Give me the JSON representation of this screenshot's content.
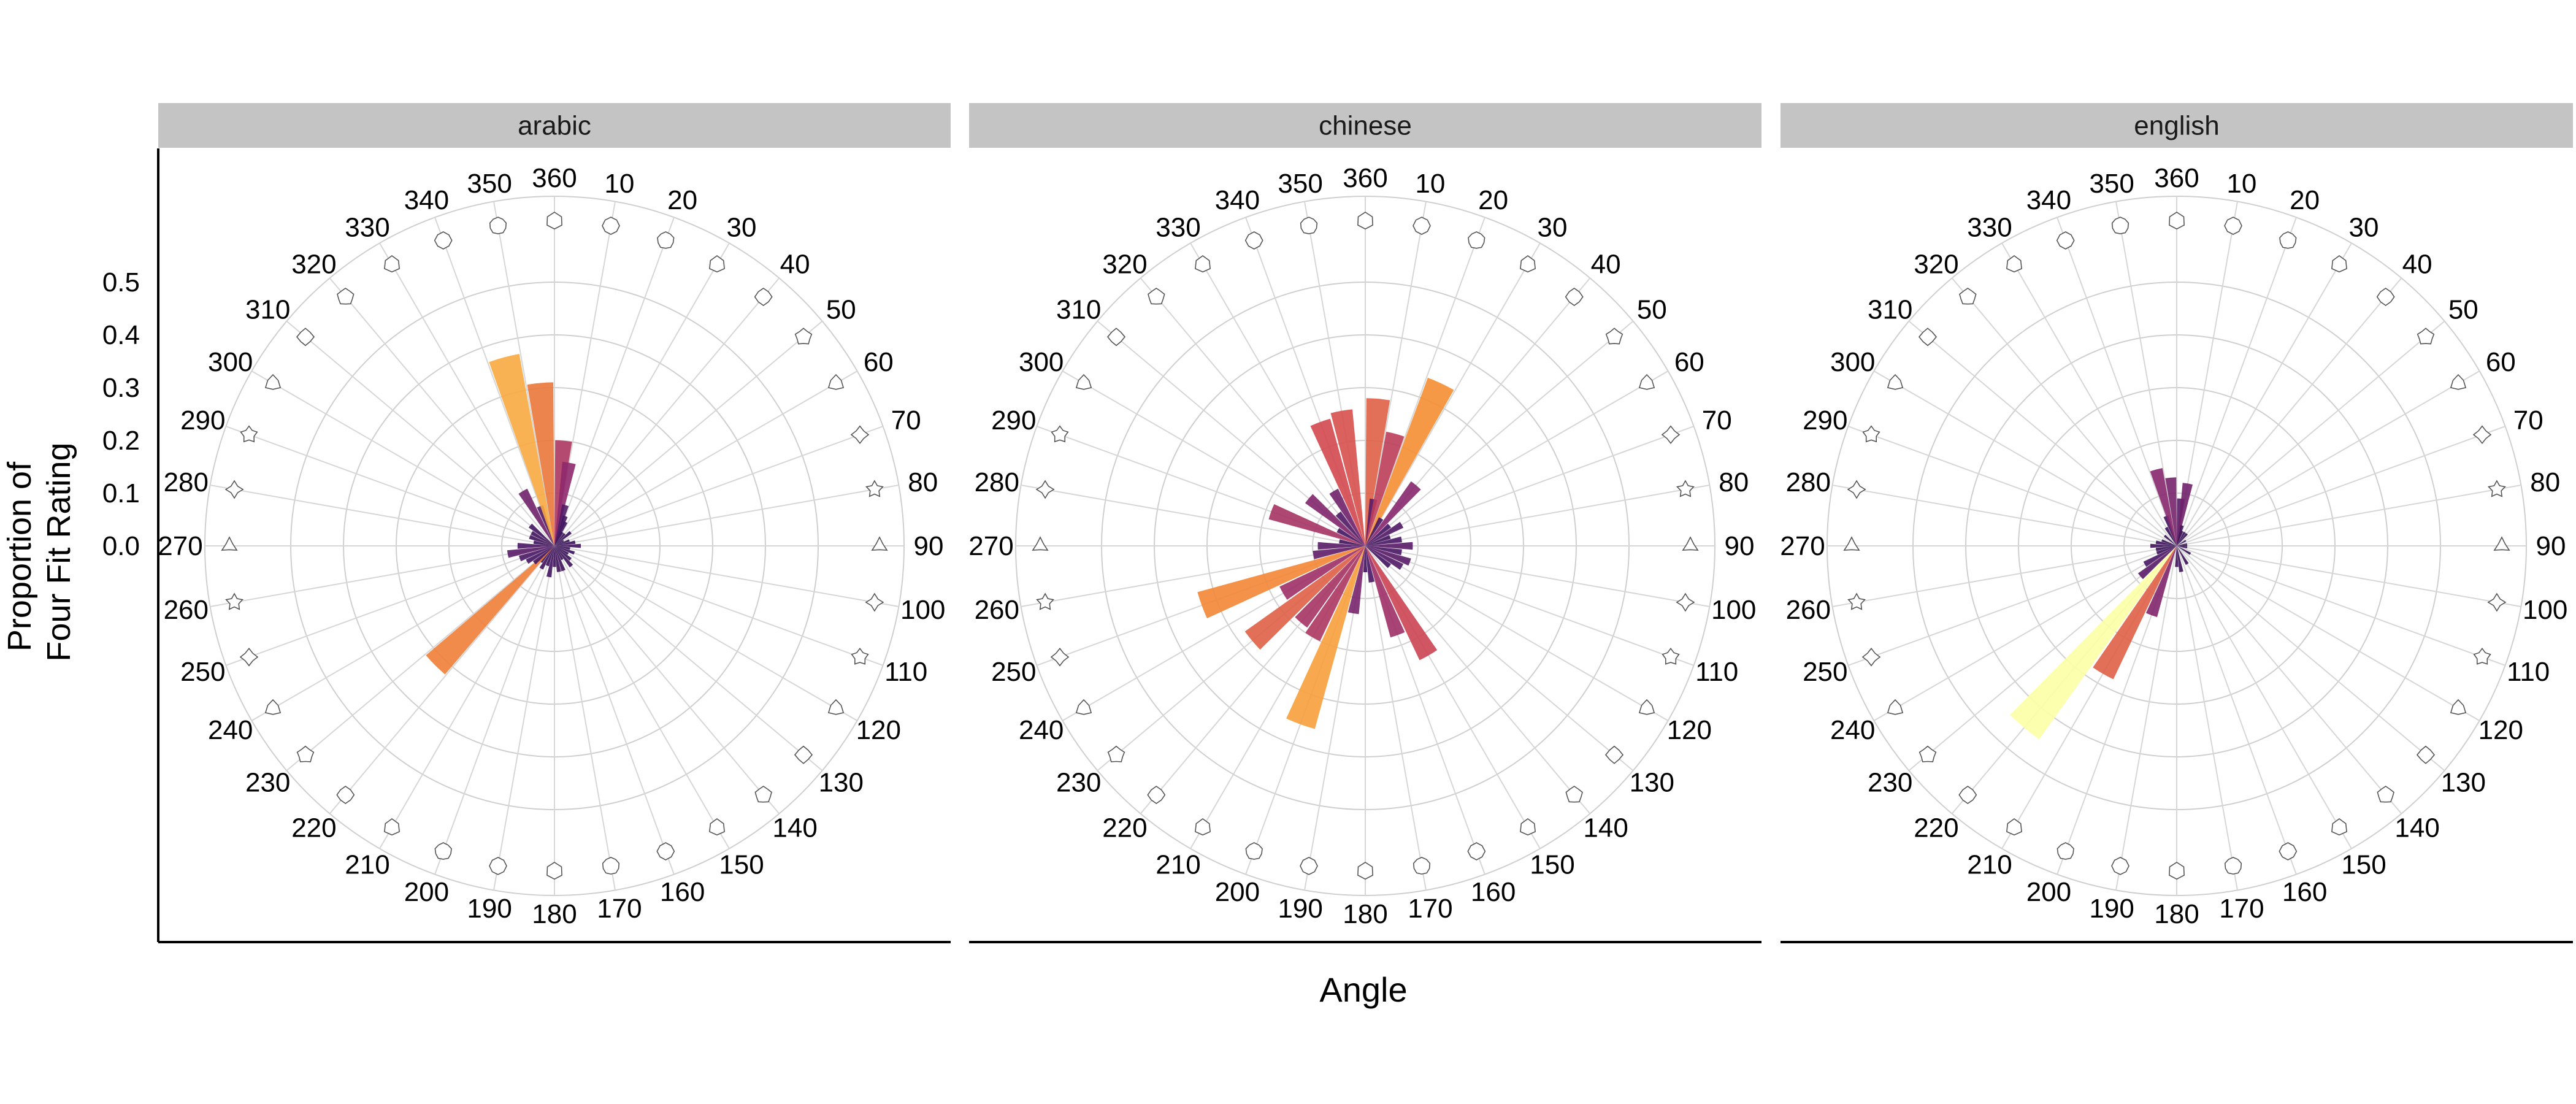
{
  "chart_data": {
    "type": "bar",
    "subtype": "polar",
    "ylabel": "Proportion of\nFour Fit Rating",
    "xlabel": "Angle",
    "y_ticks": [
      "0.0",
      "0.1",
      "0.2",
      "0.3",
      "0.4",
      "0.5"
    ],
    "ylim": [
      0,
      0.55
    ],
    "x_ticks": [
      "10",
      "20",
      "30",
      "40",
      "50",
      "60",
      "70",
      "80",
      "90",
      "100",
      "110",
      "120",
      "130",
      "140",
      "150",
      "160",
      "170",
      "180",
      "190",
      "200",
      "210",
      "220",
      "230",
      "240",
      "250",
      "260",
      "270",
      "280",
      "290",
      "300",
      "310",
      "320",
      "330",
      "340",
      "350",
      "360"
    ],
    "grid": true,
    "color_scale": "inferno (dark purple = low, yellow = high)",
    "panels": [
      {
        "name": "arabic",
        "values": [
          {
            "angle": 5,
            "value": 0.2
          },
          {
            "angle": 10,
            "value": 0.16
          },
          {
            "angle": 15,
            "value": 0.08
          },
          {
            "angle": 20,
            "value": 0.06
          },
          {
            "angle": 25,
            "value": 0.05
          },
          {
            "angle": 30,
            "value": 0.03
          },
          {
            "angle": 40,
            "value": 0.03
          },
          {
            "angle": 50,
            "value": 0.04
          },
          {
            "angle": 60,
            "value": 0.02
          },
          {
            "angle": 70,
            "value": 0.03
          },
          {
            "angle": 80,
            "value": 0.04
          },
          {
            "angle": 90,
            "value": 0.05
          },
          {
            "angle": 100,
            "value": 0.03
          },
          {
            "angle": 110,
            "value": 0.04
          },
          {
            "angle": 120,
            "value": 0.03
          },
          {
            "angle": 130,
            "value": 0.04
          },
          {
            "angle": 140,
            "value": 0.05
          },
          {
            "angle": 150,
            "value": 0.03
          },
          {
            "angle": 160,
            "value": 0.05
          },
          {
            "angle": 170,
            "value": 0.05
          },
          {
            "angle": 180,
            "value": 0.04
          },
          {
            "angle": 190,
            "value": 0.06
          },
          {
            "angle": 200,
            "value": 0.04
          },
          {
            "angle": 210,
            "value": 0.05
          },
          {
            "angle": 220,
            "value": 0.04
          },
          {
            "angle": 225,
            "value": 0.32
          },
          {
            "angle": 230,
            "value": 0.05
          },
          {
            "angle": 240,
            "value": 0.06
          },
          {
            "angle": 250,
            "value": 0.07
          },
          {
            "angle": 260,
            "value": 0.09
          },
          {
            "angle": 270,
            "value": 0.07
          },
          {
            "angle": 280,
            "value": 0.04
          },
          {
            "angle": 290,
            "value": 0.05
          },
          {
            "angle": 300,
            "value": 0.05
          },
          {
            "angle": 310,
            "value": 0.06
          },
          {
            "angle": 330,
            "value": 0.12
          },
          {
            "angle": 340,
            "value": 0.08
          },
          {
            "angle": 345,
            "value": 0.37
          },
          {
            "angle": 355,
            "value": 0.31
          }
        ]
      },
      {
        "name": "chinese",
        "values": [
          {
            "angle": 5,
            "value": 0.28
          },
          {
            "angle": 10,
            "value": 0.09
          },
          {
            "angle": 15,
            "value": 0.22
          },
          {
            "angle": 25,
            "value": 0.34
          },
          {
            "angle": 30,
            "value": 0.06
          },
          {
            "angle": 40,
            "value": 0.15
          },
          {
            "angle": 50,
            "value": 0.06
          },
          {
            "angle": 60,
            "value": 0.08
          },
          {
            "angle": 70,
            "value": 0.05
          },
          {
            "angle": 80,
            "value": 0.07
          },
          {
            "angle": 90,
            "value": 0.09
          },
          {
            "angle": 100,
            "value": 0.07
          },
          {
            "angle": 110,
            "value": 0.09
          },
          {
            "angle": 120,
            "value": 0.08
          },
          {
            "angle": 130,
            "value": 0.06
          },
          {
            "angle": 150,
            "value": 0.24
          },
          {
            "angle": 160,
            "value": 0.18
          },
          {
            "angle": 170,
            "value": 0.07
          },
          {
            "angle": 180,
            "value": 0.05
          },
          {
            "angle": 190,
            "value": 0.13
          },
          {
            "angle": 200,
            "value": 0.36
          },
          {
            "angle": 210,
            "value": 0.2
          },
          {
            "angle": 220,
            "value": 0.19
          },
          {
            "angle": 230,
            "value": 0.28
          },
          {
            "angle": 240,
            "value": 0.18
          },
          {
            "angle": 250,
            "value": 0.33
          },
          {
            "angle": 260,
            "value": 0.1
          },
          {
            "angle": 270,
            "value": 0.09
          },
          {
            "angle": 280,
            "value": 0.05
          },
          {
            "angle": 290,
            "value": 0.19
          },
          {
            "angle": 300,
            "value": 0.06
          },
          {
            "angle": 310,
            "value": 0.14
          },
          {
            "angle": 320,
            "value": 0.08
          },
          {
            "angle": 330,
            "value": 0.12
          },
          {
            "angle": 340,
            "value": 0.25
          },
          {
            "angle": 350,
            "value": 0.26
          }
        ]
      },
      {
        "name": "english",
        "values": [
          {
            "angle": 5,
            "value": 0.09
          },
          {
            "angle": 10,
            "value": 0.12
          },
          {
            "angle": 15,
            "value": 0.04
          },
          {
            "angle": 20,
            "value": 0.03
          },
          {
            "angle": 30,
            "value": 0.03
          },
          {
            "angle": 40,
            "value": 0.03
          },
          {
            "angle": 60,
            "value": 0.02
          },
          {
            "angle": 80,
            "value": 0.02
          },
          {
            "angle": 90,
            "value": 0.02
          },
          {
            "angle": 100,
            "value": 0.02
          },
          {
            "angle": 120,
            "value": 0.03
          },
          {
            "angle": 150,
            "value": 0.04
          },
          {
            "angle": 170,
            "value": 0.05
          },
          {
            "angle": 180,
            "value": 0.04
          },
          {
            "angle": 200,
            "value": 0.14
          },
          {
            "angle": 210,
            "value": 0.28
          },
          {
            "angle": 220,
            "value": 0.45
          },
          {
            "angle": 230,
            "value": 0.09
          },
          {
            "angle": 240,
            "value": 0.07
          },
          {
            "angle": 250,
            "value": 0.04
          },
          {
            "angle": 260,
            "value": 0.04
          },
          {
            "angle": 270,
            "value": 0.05
          },
          {
            "angle": 280,
            "value": 0.04
          },
          {
            "angle": 290,
            "value": 0.03
          },
          {
            "angle": 310,
            "value": 0.03
          },
          {
            "angle": 330,
            "value": 0.04
          },
          {
            "angle": 340,
            "value": 0.06
          },
          {
            "angle": 345,
            "value": 0.15
          },
          {
            "angle": 355,
            "value": 0.13
          }
        ]
      }
    ]
  }
}
